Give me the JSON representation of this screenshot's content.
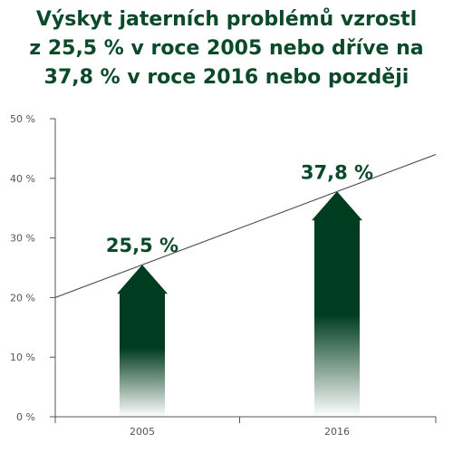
{
  "title_lines": [
    "Výskyt jaterních problémů vzrostl",
    "z 25,5 % v roce 2005 nebo dříve na",
    "37,8 % v roce 2016 nebo později"
  ],
  "colors": {
    "title": "#0a4a2a",
    "bar": "#003d20",
    "axis": "#555555",
    "trend_line": "#444444"
  },
  "chart_data": {
    "type": "bar",
    "title": "Výskyt jaterních problémů vzrostl z 25,5 % v roce 2005 nebo dříve na 37,8 % v roce 2016 nebo později",
    "categories": [
      "2005",
      "2016"
    ],
    "values": [
      25.5,
      37.8
    ],
    "value_labels": [
      "25,5 %",
      "37,8 %"
    ],
    "ylim": [
      0,
      50
    ],
    "yticks": [
      0,
      10,
      20,
      30,
      40,
      50
    ],
    "ytick_labels": [
      "0 %",
      "10 %",
      "20 %",
      "30 %",
      "40 %",
      "50 %"
    ],
    "xlabel": "",
    "ylabel": "",
    "grid": false,
    "bar_shape": "arrow with fading base",
    "trend_line": {
      "start_value": 20,
      "end_value": 44
    }
  }
}
